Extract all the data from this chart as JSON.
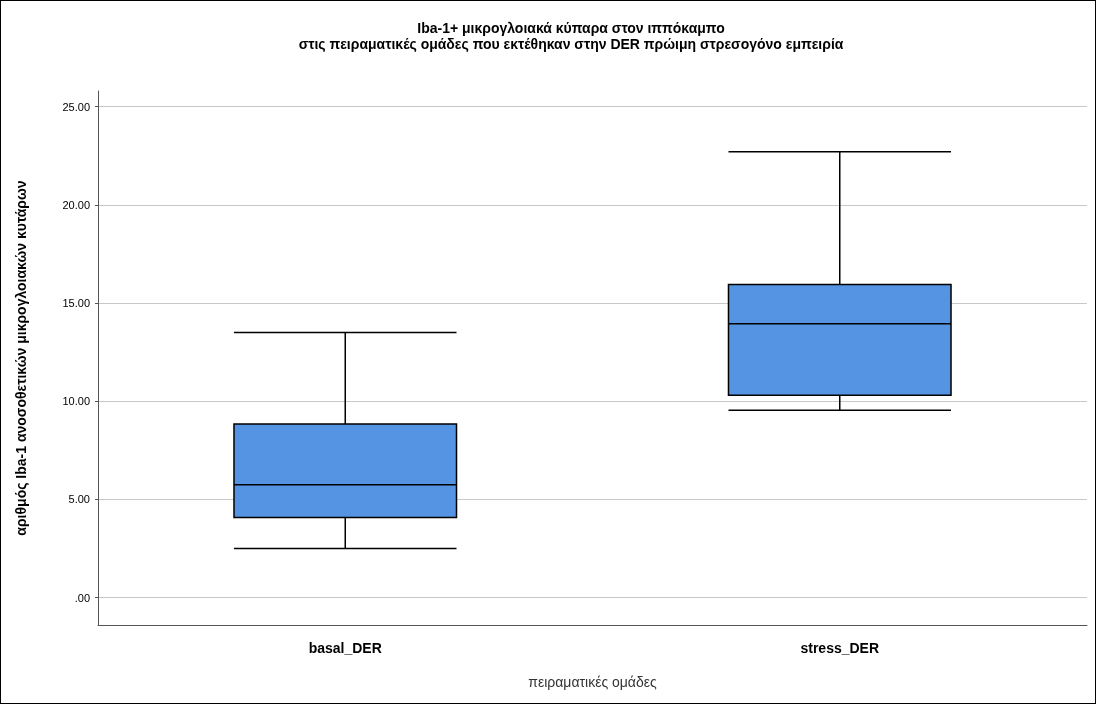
{
  "chart_data": {
    "type": "box",
    "title": "Iba-1+ μικρογλοιακά κύπαρα στον ιππόκαμπο\nστις πειραματικές ομάδες που εκτέθηκαν στην DER πρώιμη στρεσογόνο εμπειρία",
    "xlabel": "πειραματικές ομάδες",
    "ylabel": "αριθμός Iba-1 ανοσοθετικών μικρογλοιακών κυτάρων",
    "categories": [
      "basal_DER",
      "stress_DER"
    ],
    "series": [
      {
        "color": "#5594e3",
        "boxes": [
          {
            "low": 2.5,
            "q1": 4.07,
            "median": 5.75,
            "q3": 8.84,
            "high": 13.5
          },
          {
            "low": 9.54,
            "q1": 10.3,
            "median": 13.95,
            "q3": 15.94,
            "high": 22.7
          }
        ]
      }
    ],
    "ylim": [
      -1.4,
      25.8
    ],
    "yticks": [
      {
        "value": 0,
        "label": ".00"
      },
      {
        "value": 5,
        "label": "5.00"
      },
      {
        "value": 10,
        "label": "10.00"
      },
      {
        "value": 15,
        "label": "15.00"
      },
      {
        "value": 20,
        "label": "20.00"
      },
      {
        "value": 25,
        "label": "25.00"
      }
    ],
    "grid": "y"
  }
}
